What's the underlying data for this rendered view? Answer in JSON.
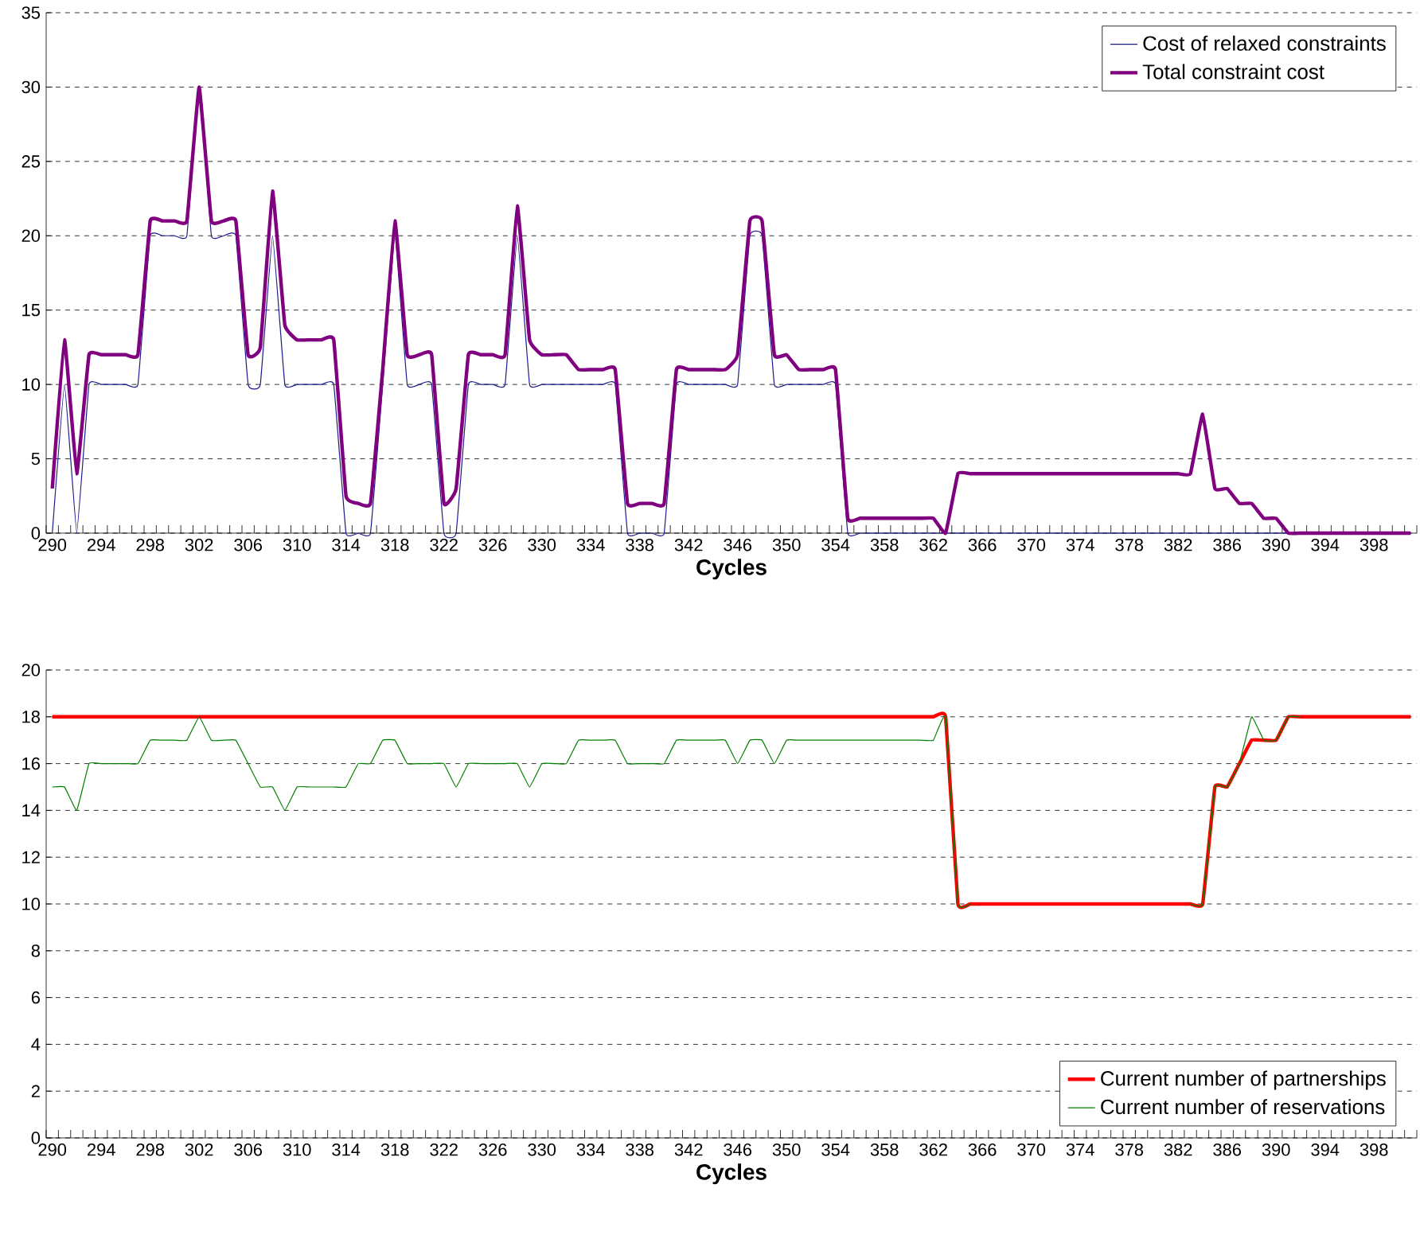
{
  "chart_data": [
    {
      "type": "line",
      "xlabel": "Cycles",
      "categories": [
        "290",
        null,
        null,
        null,
        "294",
        null,
        null,
        null,
        "298",
        null,
        null,
        null,
        "302",
        null,
        null,
        null,
        "306",
        null,
        null,
        null,
        "310",
        null,
        null,
        null,
        "314",
        null,
        null,
        null,
        "318",
        null,
        null,
        null,
        "322",
        null,
        null,
        null,
        "326",
        null,
        null,
        null,
        "330",
        null,
        null,
        null,
        "334",
        null,
        null,
        null,
        "338",
        null,
        null,
        null,
        "342",
        null,
        null,
        null,
        "346",
        null,
        null,
        null,
        "350",
        null,
        null,
        null,
        "354",
        null,
        null,
        null,
        "358",
        null,
        null,
        null,
        "362",
        null,
        null,
        null,
        "366",
        null,
        null,
        null,
        "370",
        null,
        null,
        null,
        "374",
        null,
        null,
        null,
        "378",
        null,
        null,
        null,
        "382",
        null,
        null,
        null,
        "386",
        null,
        null,
        null,
        "390",
        null,
        null,
        null,
        "394",
        null,
        null,
        null,
        "398",
        null,
        null,
        null
      ],
      "ylim": [
        0,
        35
      ],
      "yticks": [
        0,
        5,
        10,
        15,
        20,
        25,
        30,
        35
      ],
      "grid": "y",
      "legend": "top right",
      "series": [
        {
          "name": "Cost of relaxed constraints",
          "color": "#1c1c8c",
          "values": [
            0,
            10,
            0,
            10,
            10,
            10,
            10,
            10,
            20,
            20,
            20,
            20,
            30,
            20,
            20,
            20,
            10,
            10,
            20,
            10,
            10,
            10,
            10,
            10,
            0,
            0,
            0,
            10,
            20,
            10,
            10,
            10,
            0,
            0,
            10,
            10,
            10,
            10,
            20,
            10,
            10,
            10,
            10,
            10,
            10,
            10,
            10,
            0,
            0,
            0,
            0,
            10,
            10,
            10,
            10,
            10,
            10,
            20,
            20,
            10,
            10,
            10,
            10,
            10,
            10,
            0,
            0,
            0,
            0,
            0,
            0,
            0,
            0,
            0,
            0,
            0,
            0,
            0,
            0,
            0,
            0,
            0,
            0,
            0,
            0,
            0,
            0,
            0,
            0,
            0,
            0,
            0,
            0,
            0,
            0,
            0,
            0,
            0,
            0,
            0,
            0,
            0,
            0,
            null,
            null,
            null,
            null,
            null,
            null,
            null,
            null,
            null
          ]
        },
        {
          "name": "Total constraint cost",
          "color": "#800080",
          "values": [
            3,
            13,
            4,
            12,
            12,
            12,
            12,
            12,
            21,
            21,
            21,
            21,
            30,
            21,
            21,
            21,
            12,
            12.5,
            23,
            14,
            13,
            13,
            13,
            13,
            2.5,
            2,
            2,
            11,
            21,
            12,
            12,
            12,
            2,
            3,
            12,
            12,
            12,
            12,
            22,
            13,
            12,
            12,
            12,
            11,
            11,
            11,
            11,
            2,
            2,
            2,
            2,
            11,
            11,
            11,
            11,
            11,
            12,
            21,
            21,
            12,
            12,
            11,
            11,
            11,
            11,
            1,
            1,
            1,
            1,
            1,
            1,
            1,
            1,
            0,
            4,
            4,
            4,
            4,
            4,
            4,
            4,
            4,
            4,
            4,
            4,
            4,
            4,
            4,
            4,
            4,
            4,
            4,
            4,
            4,
            8,
            3,
            3,
            2,
            2,
            1,
            1,
            0,
            0,
            0,
            0,
            0,
            0,
            0,
            0,
            0,
            0,
            0
          ]
        }
      ]
    },
    {
      "type": "line",
      "xlabel": "Cycles",
      "categories": [
        "290",
        null,
        null,
        null,
        "294",
        null,
        null,
        null,
        "298",
        null,
        null,
        null,
        "302",
        null,
        null,
        null,
        "306",
        null,
        null,
        null,
        "310",
        null,
        null,
        null,
        "314",
        null,
        null,
        null,
        "318",
        null,
        null,
        null,
        "322",
        null,
        null,
        null,
        "326",
        null,
        null,
        null,
        "330",
        null,
        null,
        null,
        "334",
        null,
        null,
        null,
        "338",
        null,
        null,
        null,
        "342",
        null,
        null,
        null,
        "346",
        null,
        null,
        null,
        "350",
        null,
        null,
        null,
        "354",
        null,
        null,
        null,
        "358",
        null,
        null,
        null,
        "362",
        null,
        null,
        null,
        "366",
        null,
        null,
        null,
        "370",
        null,
        null,
        null,
        "374",
        null,
        null,
        null,
        "378",
        null,
        null,
        null,
        "382",
        null,
        null,
        null,
        "386",
        null,
        null,
        null,
        "390",
        null,
        null,
        null,
        "394",
        null,
        null,
        null,
        "398",
        null,
        null,
        null
      ],
      "ylim": [
        0,
        20
      ],
      "yticks": [
        0,
        2,
        4,
        6,
        8,
        10,
        12,
        14,
        16,
        18,
        20
      ],
      "grid": "y",
      "legend": "bottom right",
      "series": [
        {
          "name": "Current number of partnerships",
          "color": "#ff0000",
          "values": [
            18,
            18,
            18,
            18,
            18,
            18,
            18,
            18,
            18,
            18,
            18,
            18,
            18,
            18,
            18,
            18,
            18,
            18,
            18,
            18,
            18,
            18,
            18,
            18,
            18,
            18,
            18,
            18,
            18,
            18,
            18,
            18,
            18,
            18,
            18,
            18,
            18,
            18,
            18,
            18,
            18,
            18,
            18,
            18,
            18,
            18,
            18,
            18,
            18,
            18,
            18,
            18,
            18,
            18,
            18,
            18,
            18,
            18,
            18,
            18,
            18,
            18,
            18,
            18,
            18,
            18,
            18,
            18,
            18,
            18,
            18,
            18,
            18,
            18,
            10,
            10,
            10,
            10,
            10,
            10,
            10,
            10,
            10,
            10,
            10,
            10,
            10,
            10,
            10,
            10,
            10,
            10,
            10,
            10,
            10,
            15,
            15,
            16,
            17,
            17,
            17,
            18,
            18,
            18,
            18,
            18,
            18,
            18,
            18,
            18,
            18,
            18
          ]
        },
        {
          "name": "Current number of reservations",
          "color": "#008000",
          "values": [
            15,
            15,
            14,
            16,
            16,
            16,
            16,
            16,
            17,
            17,
            17,
            17,
            18,
            17,
            17,
            17,
            16,
            15,
            15,
            14,
            15,
            15,
            15,
            15,
            15,
            16,
            16,
            17,
            17,
            16,
            16,
            16,
            16,
            15,
            16,
            16,
            16,
            16,
            16,
            15,
            16,
            16,
            16,
            17,
            17,
            17,
            17,
            16,
            16,
            16,
            16,
            17,
            17,
            17,
            17,
            17,
            16,
            17,
            17,
            16,
            17,
            17,
            17,
            17,
            17,
            17,
            17,
            17,
            17,
            17,
            17,
            17,
            17,
            18,
            10,
            10,
            null,
            null,
            null,
            null,
            null,
            null,
            null,
            null,
            null,
            null,
            null,
            null,
            null,
            null,
            null,
            null,
            null,
            10,
            10,
            15,
            15,
            16,
            18,
            17,
            17,
            18,
            18,
            null,
            null,
            null,
            null,
            null,
            null,
            null,
            null,
            null
          ]
        }
      ]
    }
  ]
}
